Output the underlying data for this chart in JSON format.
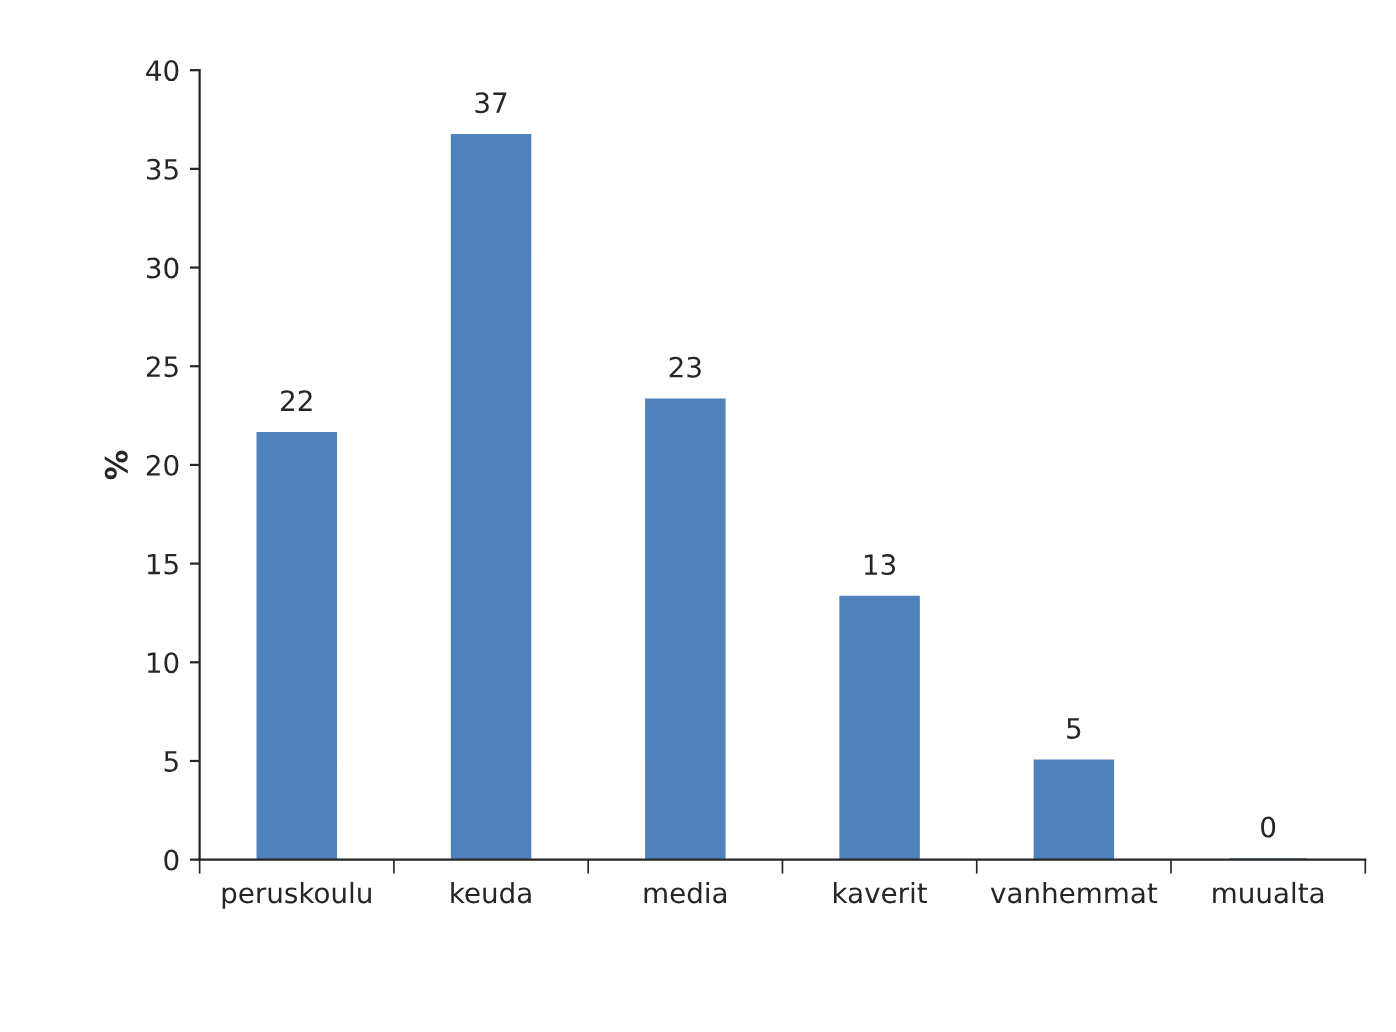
{
  "chart_data": {
    "type": "bar",
    "ylabel": "%",
    "categories": [
      "peruskoulu",
      "keuda",
      "media",
      "kaverit",
      "vanhemmat",
      "muualta"
    ],
    "values": [
      21.6,
      36.7,
      23.3,
      13.3,
      5,
      0
    ],
    "value_labels": [
      "22",
      "37",
      "23",
      "13",
      "5",
      "0"
    ],
    "color": "#4f81bd",
    "ylim": [
      0,
      40
    ],
    "yticks": [
      0,
      5,
      10,
      15,
      20,
      25,
      30,
      35,
      40
    ],
    "grid": false,
    "legend": false
  }
}
